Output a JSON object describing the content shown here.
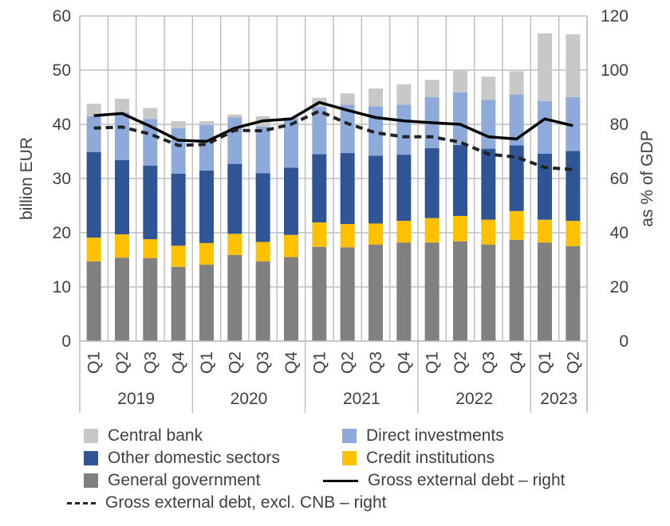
{
  "chart_data": {
    "type": "bar",
    "stacked": true,
    "title": "",
    "ylabel": "billion EUR",
    "y2label": "as % of GDP",
    "ylim": [
      0,
      60
    ],
    "y2lim": [
      0,
      120
    ],
    "yticks": [
      "0",
      "10",
      "20",
      "30",
      "40",
      "50",
      "60"
    ],
    "y2ticks": [
      "0",
      "20",
      "40",
      "60",
      "80",
      "100",
      "120"
    ],
    "grid": true,
    "legend_position": "bottom",
    "categories": [
      "Q1",
      "Q2",
      "Q3",
      "Q4",
      "Q1",
      "Q2",
      "Q3",
      "Q4",
      "Q1",
      "Q2",
      "Q3",
      "Q4",
      "Q1",
      "Q2",
      "Q3",
      "Q4",
      "Q1",
      "Q2"
    ],
    "groups": [
      {
        "label": "2019",
        "count": 4
      },
      {
        "label": "2020",
        "count": 4
      },
      {
        "label": "2021",
        "count": 4
      },
      {
        "label": "2022",
        "count": 4
      },
      {
        "label": "2023",
        "count": 2
      }
    ],
    "series": [
      {
        "name": "General government",
        "kind": "bar",
        "color": "#808080",
        "values": [
          14.7,
          15.4,
          15.3,
          13.7,
          14.1,
          15.9,
          14.7,
          15.5,
          17.4,
          17.3,
          17.8,
          18.2,
          18.2,
          18.4,
          17.8,
          18.7,
          18.2,
          17.5
        ]
      },
      {
        "name": "Credit institutions",
        "kind": "bar",
        "color": "#FFC000",
        "values": [
          4.4,
          4.3,
          3.5,
          3.9,
          4.0,
          3.9,
          3.6,
          4.1,
          4.5,
          4.3,
          3.9,
          4.0,
          4.5,
          4.7,
          4.6,
          5.3,
          4.2,
          4.7
        ]
      },
      {
        "name": "Other domestic sectors",
        "kind": "bar",
        "color": "#2F5597",
        "values": [
          15.8,
          13.7,
          13.6,
          13.3,
          13.4,
          12.9,
          12.7,
          12.4,
          12.6,
          13.1,
          12.5,
          12.2,
          12.9,
          13.1,
          13.1,
          12.1,
          12.2,
          12.9
        ]
      },
      {
        "name": "Direct investments",
        "kind": "bar",
        "color": "#8EAADB",
        "values": [
          6.6,
          8.8,
          8.6,
          8.4,
          8.4,
          8.6,
          8.6,
          9.1,
          8.7,
          8.9,
          9.1,
          9.2,
          9.4,
          9.7,
          9.0,
          9.4,
          9.7,
          9.9
        ]
      },
      {
        "name": "Central bank",
        "kind": "bar",
        "color": "#C8C8C8",
        "values": [
          2.3,
          2.5,
          2.0,
          1.3,
          0.7,
          0.5,
          1.9,
          0.2,
          1.7,
          2.1,
          3.3,
          3.8,
          3.2,
          4.0,
          4.3,
          4.3,
          12.5,
          11.6
        ]
      },
      {
        "name": "Gross external debt – right",
        "kind": "line",
        "axis": "right",
        "color": "#000000",
        "style": "solid",
        "values": [
          83.2,
          84.0,
          79.3,
          74.1,
          73.7,
          78.6,
          81.3,
          82.0,
          88.1,
          85.2,
          82.5,
          81.3,
          80.6,
          80.0,
          75.4,
          74.6,
          82.0,
          79.5
        ]
      },
      {
        "name": "Gross external debt, excl. CNB – right",
        "kind": "line",
        "axis": "right",
        "color": "#222222",
        "style": "dashed",
        "values": [
          78.6,
          79.0,
          76.4,
          72.2,
          72.6,
          77.8,
          77.6,
          80.0,
          84.9,
          80.3,
          76.9,
          75.4,
          75.4,
          73.4,
          69.0,
          67.9,
          64.1,
          63.3
        ]
      }
    ]
  },
  "legend": {
    "items": [
      {
        "label": "Central bank",
        "type": "swatch",
        "color": "#C8C8C8"
      },
      {
        "label": "Direct investments",
        "type": "swatch",
        "color": "#8EAADB"
      },
      {
        "label": "Other domestic sectors",
        "type": "swatch",
        "color": "#2F5597"
      },
      {
        "label": "Credit institutions",
        "type": "swatch",
        "color": "#FFC000"
      },
      {
        "label": "General government",
        "type": "swatch",
        "color": "#808080"
      },
      {
        "label": "Gross external debt – right",
        "type": "line"
      },
      {
        "label": "Gross external debt, excl. CNB – right",
        "type": "dash"
      }
    ]
  }
}
